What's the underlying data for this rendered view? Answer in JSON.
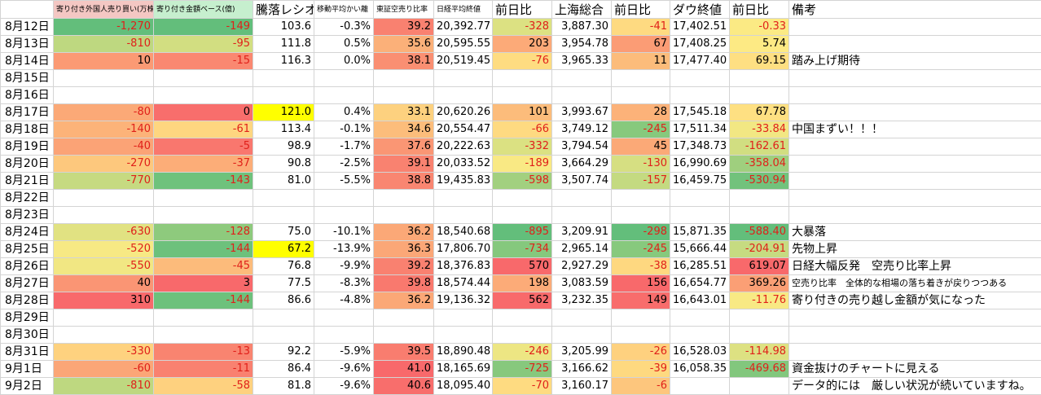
{
  "table": {
    "headers": [
      "寄り付き外国人売り買い(万株)",
      "寄り付き金額ベース(億)",
      "騰落レシオ",
      "移動平均かい離",
      "東証空売り比率",
      "日経平均終値",
      "前日比",
      "上海総合",
      "前日比",
      "ダウ終値",
      "前日比",
      "備考"
    ],
    "header_colors": [
      "#f4c7c3",
      "#c6efce",
      null,
      null,
      null,
      null,
      null,
      null,
      null,
      null,
      null,
      null
    ],
    "header_small": [
      true,
      true,
      false,
      true,
      true,
      true,
      false,
      false,
      false,
      false,
      false,
      false
    ],
    "column_scales": [
      "green-yellow-red",
      "green-yellow-red",
      null,
      null,
      "yellow-red",
      null,
      "green-yellow-red",
      null,
      "green-yellow-red",
      null,
      "green-yellow-red",
      null
    ],
    "highlight_color": "#ffff00",
    "rows": [
      {
        "date": "8月12日",
        "cells": [
          "-1,270",
          "-149",
          "103.6",
          "-0.3%",
          "39.2",
          "20,392.77",
          "-328",
          "3,887.30",
          "-41",
          "17,402.51",
          "-0.33",
          null
        ]
      },
      {
        "date": "8月13日",
        "cells": [
          "-810",
          "-95",
          "111.8",
          "0.5%",
          "35.6",
          "20,595.55",
          "203",
          "3,954.78",
          "67",
          "17,408.25",
          "5.74",
          null
        ]
      },
      {
        "date": "8月14日",
        "cells": [
          "10",
          "-15",
          "116.3",
          "0.0%",
          "38.1",
          "20,519.45",
          "-76",
          "3,965.33",
          "11",
          "17,477.40",
          "69.15",
          "踏み上げ期待"
        ]
      },
      {
        "date": "8月15日",
        "cells": null
      },
      {
        "date": "8月16日",
        "cells": null
      },
      {
        "date": "8月17日",
        "highlight": 2,
        "cells": [
          "-80",
          "0",
          "121.0",
          "0.4%",
          "33.1",
          "20,620.26",
          "101",
          "3,993.67",
          "28",
          "17,545.18",
          "67.78",
          null
        ]
      },
      {
        "date": "8月18日",
        "cells": [
          "-140",
          "-61",
          "113.4",
          "-0.1%",
          "34.6",
          "20,554.47",
          "-66",
          "3,749.12",
          "-245",
          "17,511.34",
          "-33.84",
          "中国まずい！！！"
        ]
      },
      {
        "date": "8月19日",
        "cells": [
          "-40",
          "-5",
          "98.9",
          "-1.7%",
          "37.6",
          "20,222.63",
          "-332",
          "3,794.54",
          "45",
          "17,348.73",
          "-162.61",
          null
        ]
      },
      {
        "date": "8月20日",
        "cells": [
          "-270",
          "-37",
          "90.8",
          "-2.5%",
          "39.1",
          "20,033.52",
          "-189",
          "3,664.29",
          "-130",
          "16,990.69",
          "-358.04",
          null
        ]
      },
      {
        "date": "8月21日",
        "cells": [
          "-770",
          "-143",
          "81.0",
          "-5.5%",
          "38.8",
          "19,435.83",
          "-598",
          "3,507.74",
          "-157",
          "16,459.75",
          "-530.94",
          null
        ]
      },
      {
        "date": "8月22日",
        "cells": null
      },
      {
        "date": "8月23日",
        "cells": null
      },
      {
        "date": "8月24日",
        "cells": [
          "-630",
          "-128",
          "75.0",
          "-10.1%",
          "36.2",
          "18,540.68",
          "-895",
          "3,209.91",
          "-298",
          "15,871.35",
          "-588.40",
          "大暴落"
        ]
      },
      {
        "date": "8月25日",
        "highlight": 2,
        "cells": [
          "-520",
          "-144",
          "67.2",
          "-13.9%",
          "36.3",
          "17,806.70",
          "-734",
          "2,965.14",
          "-245",
          "15,666.44",
          "-204.91",
          "先物上昇"
        ]
      },
      {
        "date": "8月26日",
        "cells": [
          "-550",
          "-45",
          "76.8",
          "-9.9%",
          "39.2",
          "18,376.83",
          "570",
          "2,927.29",
          "-38",
          "16,285.51",
          "619.07",
          "日経大幅反発　空売り比率上昇"
        ]
      },
      {
        "date": "8月27日",
        "small_remark": true,
        "cells": [
          "40",
          "3",
          "77.5",
          "-8.3%",
          "39.8",
          "18,574.44",
          "198",
          "3,083.59",
          "156",
          "16,654.77",
          "369.26",
          "空売り比率　全体的な相場の落ち着きが戻りつつある"
        ]
      },
      {
        "date": "8月28日",
        "cells": [
          "310",
          "-144",
          "86.6",
          "-4.8%",
          "36.2",
          "19,136.32",
          "562",
          "3,232.35",
          "149",
          "16,643.01",
          "-11.76",
          "寄り付きの売り越し金額が気になった"
        ]
      },
      {
        "date": "8月29日",
        "cells": null
      },
      {
        "date": "8月30日",
        "cells": null
      },
      {
        "date": "8月31日",
        "cells": [
          "-330",
          "-13",
          "92.2",
          "-5.9%",
          "39.5",
          "18,890.48",
          "-246",
          "3,205.99",
          "-26",
          "16,528.03",
          "-114.98",
          null
        ]
      },
      {
        "date": "9月1日",
        "cells": [
          "-60",
          "-11",
          "86.4",
          "-9.6%",
          "41.0",
          "18,165.69",
          "-725",
          "3,166.62",
          "-39",
          "16,058.35",
          "-469.68",
          "資金抜けのチャートに見える"
        ]
      },
      {
        "date": "9月2日",
        "cells": [
          "-810",
          "-58",
          "81.8",
          "-9.6%",
          "40.6",
          "18,095.40",
          "-70",
          "3,160.17",
          "-6",
          null,
          null,
          "データ的には　厳しい状況が続いていますね。"
        ]
      }
    ]
  }
}
